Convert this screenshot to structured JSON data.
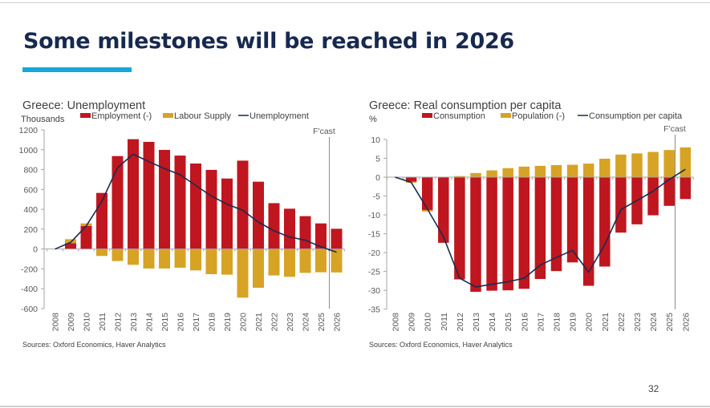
{
  "slide": {
    "title": "Some milestones will be reached in 2026",
    "page_number": "32",
    "accent_color": "#17A7DB",
    "title_color": "#17294F"
  },
  "colors": {
    "red": "#C0161F",
    "gold": "#D6A325",
    "line": "#1B2A4E"
  },
  "chart_data": [
    {
      "type": "bar",
      "stacked": true,
      "title": "Greece: Unemployment",
      "ylabel": "Thousands",
      "xlabel": "",
      "ylim": [
        -600,
        1200
      ],
      "yticks": [
        1200,
        1000,
        800,
        600,
        400,
        200,
        0,
        -200,
        -400,
        -600
      ],
      "grid": false,
      "legend_position": "top",
      "forecast_label": "F'cast",
      "forecast_after": "2025",
      "categories": [
        "2008",
        "2009",
        "2010",
        "2011",
        "2012",
        "2013",
        "2014",
        "2015",
        "2016",
        "2017",
        "2018",
        "2019",
        "2020",
        "2021",
        "2022",
        "2023",
        "2024",
        "2025",
        "2026"
      ],
      "series": [
        {
          "name": "Employment (-)",
          "kind": "bar",
          "color": "#C0161F",
          "values": [
            0,
            59,
            232,
            565,
            936,
            1106,
            1079,
            998,
            941,
            861,
            797,
            710,
            890,
            678,
            462,
            406,
            331,
            258,
            204
          ]
        },
        {
          "name": "Labour Supply",
          "kind": "bar",
          "color": "#D6A325",
          "values": [
            0,
            40,
            26,
            -70,
            -121,
            -159,
            -196,
            -196,
            -188,
            -215,
            -253,
            -258,
            -490,
            -390,
            -266,
            -280,
            -240,
            -234,
            -236
          ]
        },
        {
          "name": "Unemployment",
          "kind": "line",
          "color": "#1B2A4E",
          "values": [
            0,
            67,
            232,
            480,
            820,
            955,
            880,
            810,
            748,
            640,
            533,
            452,
            390,
            272,
            183,
            121,
            89,
            22,
            -32
          ]
        }
      ],
      "source": "Sources: Oxford Economics, Haver Analytics"
    },
    {
      "type": "bar",
      "stacked": true,
      "title": "Greece: Real consumption per capita",
      "ylabel": "%",
      "xlabel": "",
      "ylim": [
        -35,
        10
      ],
      "yticks": [
        10,
        5,
        0,
        -5,
        -10,
        -15,
        -20,
        -25,
        -30,
        -35
      ],
      "grid": false,
      "legend_position": "top",
      "forecast_label": "F'cast",
      "forecast_after": "2025",
      "categories": [
        "2008",
        "2009",
        "2010",
        "2011",
        "2012",
        "2013",
        "2014",
        "2015",
        "2016",
        "2017",
        "2018",
        "2019",
        "2020",
        "2021",
        "2022",
        "2023",
        "2024",
        "2025",
        "2026"
      ],
      "series": [
        {
          "name": "Consumption",
          "kind": "bar",
          "color": "#C0161F",
          "values": [
            0,
            -1.2,
            -8.7,
            -17.4,
            -27.1,
            -30.4,
            -30.1,
            -30.0,
            -29.6,
            -27.0,
            -24.9,
            -22.6,
            -28.8,
            -23.7,
            -14.7,
            -12.5,
            -10.1,
            -7.6,
            -5.8
          ]
        },
        {
          "name": "Population (-)",
          "kind": "bar",
          "color": "#D6A325",
          "values": [
            0,
            -0.3,
            -0.4,
            0,
            0.3,
            1.1,
            1.8,
            2.4,
            2.8,
            3.0,
            3.2,
            3.3,
            3.6,
            4.9,
            6.0,
            6.3,
            6.7,
            7.2,
            7.9
          ]
        },
        {
          "name": "Consumption per capita",
          "kind": "line",
          "color": "#1B2A4E",
          "values": [
            0,
            -1.4,
            -8.4,
            -15.8,
            -26.8,
            -29.1,
            -28.4,
            -27.7,
            -26.8,
            -23.3,
            -21.3,
            -19.4,
            -25.2,
            -17.9,
            -8.6,
            -6.2,
            -3.7,
            -0.6,
            2.1
          ]
        }
      ],
      "source": "Sources: Oxford Economics, Haver Analytics"
    }
  ]
}
